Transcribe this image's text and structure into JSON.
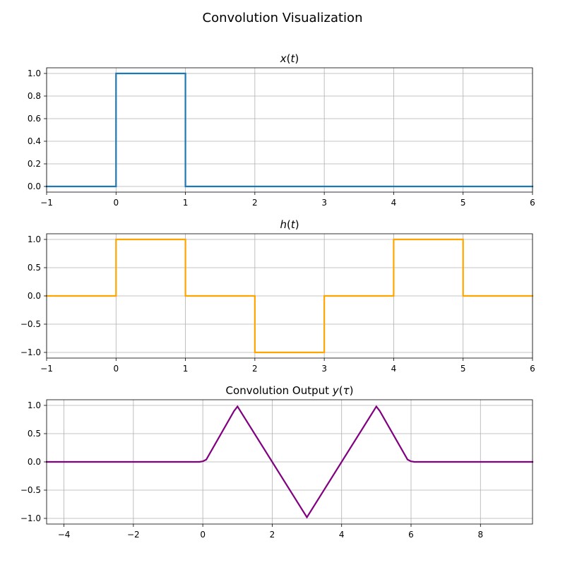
{
  "figure": {
    "suptitle": "Convolution Visualization"
  },
  "chart_data": [
    {
      "type": "line",
      "title": "x(t)",
      "title_parts": [
        {
          "t": "x",
          "italic": true
        },
        {
          "t": "(",
          "italic": false
        },
        {
          "t": "t",
          "italic": true
        },
        {
          "t": ")",
          "italic": false
        }
      ],
      "xlabel": "",
      "ylabel": "",
      "xlim": [
        -1,
        6
      ],
      "ylim": [
        -0.05,
        1.05
      ],
      "xticks": [
        -1,
        0,
        1,
        2,
        3,
        4,
        5,
        6
      ],
      "xtick_labels": [
        "−1",
        "0",
        "1",
        "2",
        "3",
        "4",
        "5",
        "6"
      ],
      "yticks": [
        0.0,
        0.2,
        0.4,
        0.6,
        0.8,
        1.0
      ],
      "ytick_labels": [
        "0.0",
        "0.2",
        "0.4",
        "0.6",
        "0.8",
        "1.0"
      ],
      "grid": true,
      "series": [
        {
          "color": "#1f77b4",
          "x": [
            -1,
            0,
            0,
            1,
            1,
            6
          ],
          "y": [
            0,
            0,
            1,
            1,
            0,
            0
          ]
        }
      ]
    },
    {
      "type": "line",
      "title": "h(t)",
      "title_parts": [
        {
          "t": "h",
          "italic": true
        },
        {
          "t": "(",
          "italic": false
        },
        {
          "t": "t",
          "italic": true
        },
        {
          "t": ")",
          "italic": false
        }
      ],
      "xlabel": "",
      "ylabel": "",
      "xlim": [
        -1,
        6
      ],
      "ylim": [
        -1.1,
        1.1
      ],
      "xticks": [
        -1,
        0,
        1,
        2,
        3,
        4,
        5,
        6
      ],
      "xtick_labels": [
        "−1",
        "0",
        "1",
        "2",
        "3",
        "4",
        "5",
        "6"
      ],
      "yticks": [
        -1.0,
        -0.5,
        0.0,
        0.5,
        1.0
      ],
      "ytick_labels": [
        "−1.0",
        "−0.5",
        "0.0",
        "0.5",
        "1.0"
      ],
      "grid": true,
      "series": [
        {
          "color": "#ffa500",
          "x": [
            -1,
            0,
            0,
            1,
            1,
            2,
            2,
            3,
            3,
            4,
            4,
            5,
            5,
            6
          ],
          "y": [
            0,
            0,
            1,
            1,
            0,
            0,
            -1,
            -1,
            0,
            0,
            1,
            1,
            0,
            0
          ]
        }
      ]
    },
    {
      "type": "line",
      "title": "Convolution Output y(τ)",
      "title_parts": [
        {
          "t": "Convolution Output ",
          "italic": false
        },
        {
          "t": "y",
          "italic": true
        },
        {
          "t": "(",
          "italic": false
        },
        {
          "t": "τ",
          "italic": true
        },
        {
          "t": ")",
          "italic": false
        }
      ],
      "xlabel": "",
      "ylabel": "",
      "xlim": [
        -4.5,
        9.5
      ],
      "ylim": [
        -1.1,
        1.1
      ],
      "xticks": [
        -4,
        -2,
        0,
        2,
        4,
        6,
        8
      ],
      "xtick_labels": [
        "−4",
        "−2",
        "0",
        "2",
        "4",
        "6",
        "8"
      ],
      "yticks": [
        -1.0,
        -0.5,
        0.0,
        0.5,
        1.0
      ],
      "ytick_labels": [
        "−1.0",
        "−0.5",
        "0.0",
        "0.5",
        "1.0"
      ],
      "grid": true,
      "series": [
        {
          "color": "#800080",
          "x": [
            -4.5,
            -0.1,
            0,
            0.1,
            0.9,
            1,
            3,
            5,
            5.1,
            5.9,
            6,
            6.1,
            9.5
          ],
          "y": [
            0,
            0,
            0.01,
            0.04,
            0.9,
            0.98,
            -0.98,
            0.98,
            0.9,
            0.04,
            0.01,
            0,
            0
          ]
        }
      ]
    }
  ]
}
